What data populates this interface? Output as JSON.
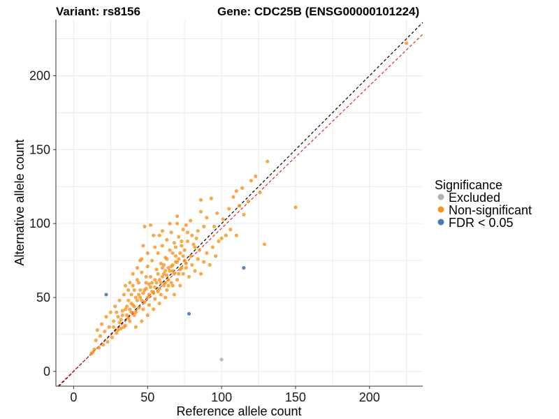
{
  "chart_data": {
    "type": "scatter",
    "title_left": "Variant: rs8156",
    "title_right": "Gene: CDC25B (ENSG00000101224)",
    "xlabel": "Reference allele count",
    "ylabel": "Alternative allele count",
    "xlim": [
      -12,
      236
    ],
    "ylim": [
      -10,
      238
    ],
    "xticks": [
      0,
      50,
      100,
      150,
      200
    ],
    "yticks": [
      0,
      50,
      100,
      150,
      200
    ],
    "grid": true,
    "legend": {
      "title": "Significance",
      "position": "right",
      "entries": [
        {
          "label": "Excluded",
          "color": "#b3b3b3"
        },
        {
          "label": "Non-significant",
          "color": "#f7941d"
        },
        {
          "label": "FDR < 0.05",
          "color": "#4a7ab0"
        }
      ]
    },
    "reference_lines": [
      {
        "name": "identity",
        "slope": 1.0,
        "intercept": 0,
        "color": "#000000",
        "style": "dashed"
      },
      {
        "name": "fit",
        "slope": 0.965,
        "intercept": 0.3,
        "color": "#e8231b",
        "style": "dashed"
      }
    ],
    "series": [
      {
        "name": "Excluded",
        "color": "#b3b3b3",
        "points": [
          [
            100,
            8
          ]
        ]
      },
      {
        "name": "FDR < 0.05",
        "color": "#4a7ab0",
        "points": [
          [
            22,
            52
          ],
          [
            78,
            39
          ],
          [
            115,
            70
          ]
        ]
      },
      {
        "name": "Non-significant",
        "color": "#f7941d",
        "points": [
          [
            225,
            222
          ],
          [
            131,
            142
          ],
          [
            150,
            111
          ],
          [
            129,
            86
          ],
          [
            123,
            132
          ],
          [
            126,
            121
          ],
          [
            120,
            129
          ],
          [
            110,
            92
          ],
          [
            115,
            106
          ],
          [
            112,
            112
          ],
          [
            105,
            110
          ],
          [
            101,
            103
          ],
          [
            97,
            107
          ],
          [
            95,
            98
          ],
          [
            93,
            117
          ],
          [
            86,
            116
          ],
          [
            90,
            104
          ],
          [
            88,
            98
          ],
          [
            86,
            108
          ],
          [
            84,
            95
          ],
          [
            82,
            84
          ],
          [
            80,
            92
          ],
          [
            79,
            102
          ],
          [
            77,
            88
          ],
          [
            76,
            99
          ],
          [
            75,
            75
          ],
          [
            74,
            96
          ],
          [
            73,
            85
          ],
          [
            72,
            80
          ],
          [
            71,
            91
          ],
          [
            70,
            100
          ],
          [
            69,
            78
          ],
          [
            68,
            87
          ],
          [
            67,
            72
          ],
          [
            66,
            94
          ],
          [
            65,
            82
          ],
          [
            64,
            70
          ],
          [
            63,
            89
          ],
          [
            62,
            77
          ],
          [
            61,
            66
          ],
          [
            60,
            85
          ],
          [
            59,
            73
          ],
          [
            58,
            62
          ],
          [
            57,
            80
          ],
          [
            56,
            69
          ],
          [
            55,
            57
          ],
          [
            54,
            92
          ],
          [
            53,
            75
          ],
          [
            52,
            64
          ],
          [
            51,
            52
          ],
          [
            50,
            71
          ],
          [
            49,
            60
          ],
          [
            48,
            47
          ],
          [
            47,
            85
          ],
          [
            46,
            67
          ],
          [
            45,
            55
          ],
          [
            44,
            43
          ],
          [
            43,
            62
          ],
          [
            42,
            50
          ],
          [
            41,
            38
          ],
          [
            40,
            58
          ],
          [
            39,
            46
          ],
          [
            38,
            34
          ],
          [
            37,
            55
          ],
          [
            36,
            44
          ],
          [
            35,
            31
          ],
          [
            34,
            52
          ],
          [
            33,
            41
          ],
          [
            32,
            29
          ],
          [
            31,
            48
          ],
          [
            30,
            37
          ],
          [
            29,
            26
          ],
          [
            28,
            44
          ],
          [
            27,
            34
          ],
          [
            26,
            23
          ],
          [
            25,
            40
          ],
          [
            24,
            30
          ],
          [
            23,
            20
          ],
          [
            22,
            37
          ],
          [
            21,
            27
          ],
          [
            20,
            18
          ],
          [
            19,
            32
          ],
          [
            18,
            24
          ],
          [
            17,
            16
          ],
          [
            16,
            28
          ],
          [
            15,
            21
          ],
          [
            14,
            15
          ],
          [
            13,
            13
          ],
          [
            12,
            12
          ],
          [
            48,
            98
          ],
          [
            52,
            99
          ],
          [
            58,
            92
          ],
          [
            60,
            70
          ],
          [
            62,
            60
          ],
          [
            64,
            58
          ],
          [
            66,
            60
          ],
          [
            68,
            52
          ],
          [
            70,
            62
          ],
          [
            72,
            58
          ],
          [
            74,
            66
          ],
          [
            76,
            70
          ],
          [
            78,
            64
          ],
          [
            80,
            72
          ],
          [
            82,
            68
          ],
          [
            84,
            76
          ],
          [
            86,
            66
          ],
          [
            88,
            74
          ],
          [
            90,
            80
          ],
          [
            92,
            72
          ],
          [
            94,
            84
          ],
          [
            96,
            78
          ],
          [
            98,
            88
          ],
          [
            100,
            90
          ],
          [
            103,
            92
          ],
          [
            106,
            96
          ],
          [
            108,
            118
          ],
          [
            110,
            122
          ],
          [
            114,
            124
          ],
          [
            118,
            115
          ],
          [
            45,
            75
          ],
          [
            50,
            80
          ],
          [
            55,
            84
          ],
          [
            60,
            95
          ],
          [
            65,
            100
          ],
          [
            70,
            105
          ],
          [
            42,
            30
          ],
          [
            46,
            34
          ],
          [
            50,
            38
          ],
          [
            54,
            42
          ],
          [
            58,
            46
          ],
          [
            62,
            50
          ],
          [
            38,
            60
          ],
          [
            40,
            66
          ],
          [
            43,
            70
          ],
          [
            46,
            76
          ],
          [
            49,
            64
          ],
          [
            53,
            60
          ],
          [
            57,
            54
          ],
          [
            61,
            58
          ],
          [
            63,
            65
          ],
          [
            67,
            68
          ],
          [
            69,
            74
          ],
          [
            73,
            70
          ],
          [
            35,
            58
          ],
          [
            37,
            48
          ],
          [
            39,
            40
          ],
          [
            41,
            55
          ],
          [
            44,
            60
          ],
          [
            47,
            42
          ],
          [
            51,
            45
          ],
          [
            55,
            49
          ],
          [
            59,
            52
          ],
          [
            63,
            55
          ],
          [
            67,
            58
          ],
          [
            71,
            66
          ],
          [
            27,
            30
          ],
          [
            29,
            40
          ],
          [
            31,
            33
          ],
          [
            33,
            38
          ],
          [
            35,
            42
          ],
          [
            37,
            36
          ],
          [
            39,
            52
          ],
          [
            41,
            44
          ],
          [
            43,
            48
          ],
          [
            45,
            50
          ],
          [
            47,
            53
          ],
          [
            49,
            56
          ],
          [
            51,
            59
          ],
          [
            53,
            54
          ],
          [
            55,
            62
          ],
          [
            57,
            66
          ],
          [
            59,
            60
          ],
          [
            61,
            72
          ],
          [
            63,
            76
          ],
          [
            65,
            68
          ],
          [
            67,
            80
          ],
          [
            69,
            84
          ],
          [
            71,
            76
          ],
          [
            73,
            88
          ],
          [
            75,
            82
          ],
          [
            77,
            94
          ],
          [
            79,
            78
          ],
          [
            81,
            86
          ],
          [
            83,
            90
          ],
          [
            85,
            82
          ],
          [
            30,
            28
          ],
          [
            32,
            35
          ],
          [
            34,
            30
          ],
          [
            36,
            38
          ],
          [
            38,
            42
          ],
          [
            40,
            45
          ],
          [
            42,
            40
          ],
          [
            44,
            52
          ],
          [
            46,
            48
          ],
          [
            48,
            55
          ],
          [
            50,
            50
          ],
          [
            52,
            57
          ],
          [
            54,
            53
          ],
          [
            56,
            60
          ],
          [
            58,
            56
          ],
          [
            60,
            64
          ],
          [
            62,
            68
          ],
          [
            64,
            62
          ],
          [
            66,
            71
          ],
          [
            68,
            66
          ],
          [
            70,
            74
          ],
          [
            72,
            69
          ],
          [
            74,
            78
          ],
          [
            76,
            73
          ]
        ]
      }
    ]
  }
}
